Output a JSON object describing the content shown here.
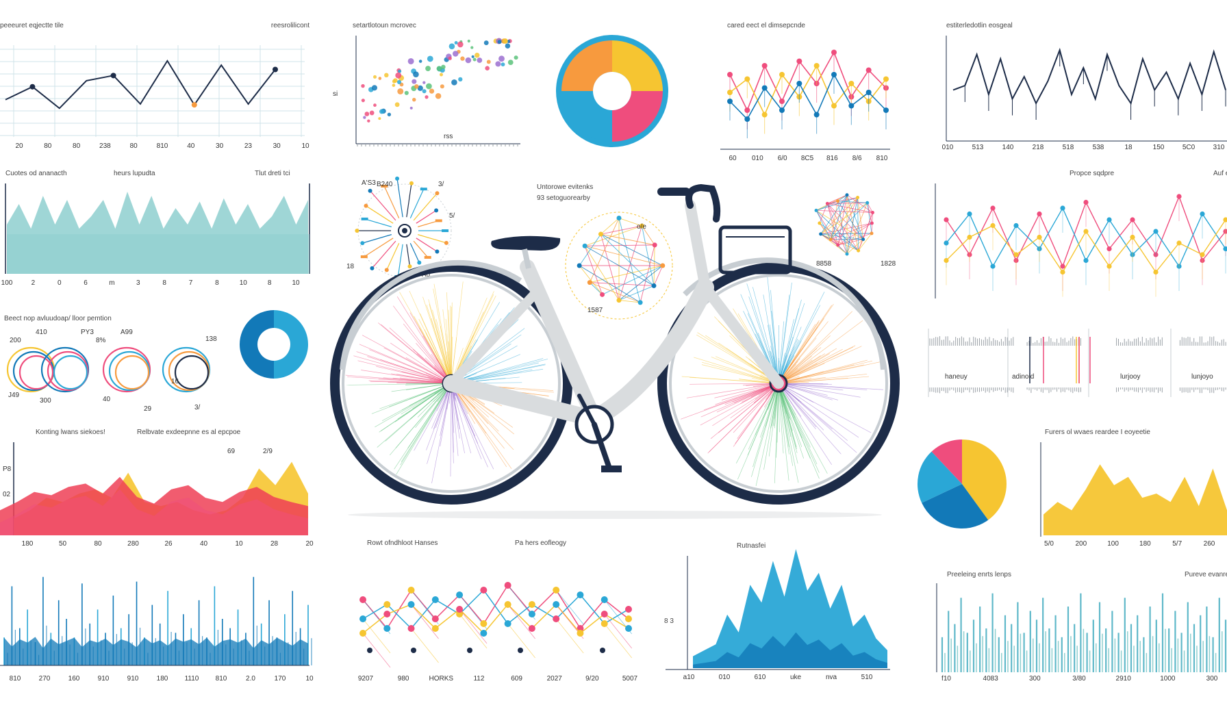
{
  "palette": {
    "navy": "#1d2c48",
    "teal": "#8ecfcf",
    "blue": "#1279b8",
    "cyan": "#2aa7d6",
    "pink": "#ef4d7d",
    "yellow": "#f6c531",
    "orange": "#f79a3e",
    "red": "#ee3f56",
    "gray": "#9aa0a6",
    "frame": "#c7cdd2"
  },
  "bicycle": {
    "frame_color": "#d9dcde",
    "tire_color": "#1d2c48",
    "wheel_colors": [
      "#ef4d7d",
      "#f6c531",
      "#2aa7d6",
      "#f79a3e",
      "#9b6fd0",
      "#5bc27a"
    ]
  },
  "chart_data": [
    {
      "id": "line-top-left",
      "type": "line",
      "title": "peeeuret eqjectte tile",
      "title_right": "reesrolilicont",
      "tick_labels": [
        "20",
        "80",
        "80",
        "238",
        "80",
        "810",
        "40",
        "30",
        "23",
        "30",
        "10"
      ],
      "values": [
        40,
        55,
        30,
        62,
        68,
        35,
        85,
        34,
        80,
        35,
        75
      ],
      "colors": {
        "line": "#1d2c48",
        "grid": "#cfe3e8"
      }
    },
    {
      "id": "area-teal",
      "type": "area",
      "title": "Cuotes od ananacth",
      "title_mid": "heurs lupudta",
      "title_right": "Tlut dreti tci",
      "tick_labels": [
        "100",
        "2",
        "0",
        "6",
        "m",
        "3",
        "8",
        "7",
        "8",
        "10",
        "8",
        "10"
      ],
      "values": [
        60,
        85,
        55,
        95,
        60,
        90,
        55,
        70,
        90,
        55,
        100,
        60,
        95,
        55,
        80,
        60,
        88,
        55,
        92,
        60,
        85,
        55,
        70,
        95,
        60,
        90
      ],
      "colors": {
        "fill": "#8ecfcf"
      }
    },
    {
      "id": "donut-small",
      "type": "pie",
      "title": "",
      "values": [
        50,
        50
      ],
      "colors": [
        "#2aa7d6",
        "#1279b8"
      ]
    },
    {
      "id": "circles",
      "type": "other",
      "title": "Beect nop avluudoap/ lloor pemtion",
      "labels": [
        "200",
        "410",
        "PY3",
        "A99",
        "138",
        "J49",
        "300",
        "40",
        "29",
        "3/",
        "8%",
        "16"
      ]
    },
    {
      "id": "area-warm",
      "type": "area",
      "title": "Konting lwans siekoes!",
      "title_right": "Relbvate exdeepnne es al epcpoe",
      "tick_labels": [
        "180",
        "50",
        "80",
        "280",
        "26",
        "40",
        "10",
        "28",
        "20"
      ],
      "annotations": [
        "P8",
        "02",
        "69",
        "2/9"
      ],
      "series": [
        {
          "name": "",
          "values": [
            30,
            40,
            52,
            48,
            58,
            62,
            50,
            70,
            46,
            38,
            55,
            60,
            45,
            40,
            52,
            58,
            46,
            40,
            35
          ]
        },
        {
          "name": "",
          "values": [
            20,
            30,
            45,
            40,
            50,
            55,
            45,
            75,
            40,
            35,
            40,
            30,
            25,
            30,
            45,
            80,
            60,
            88,
            50
          ]
        }
      ],
      "colors": [
        "#ee3f56",
        "#f6c531"
      ]
    },
    {
      "id": "spikes-blue",
      "type": "bar",
      "title": "",
      "tick_labels": [
        "810",
        "270",
        "160",
        "910",
        "910",
        "180",
        "1110",
        "810",
        "2.0",
        "170",
        "10"
      ],
      "values": [
        30,
        85,
        40,
        60,
        25,
        95,
        35,
        70,
        50,
        30,
        88,
        45,
        60,
        35,
        75,
        40,
        55,
        90,
        30,
        65,
        45,
        80,
        35,
        55,
        40,
        70,
        30,
        85,
        50,
        40,
        60,
        35,
        95,
        45,
        70,
        30,
        55,
        80,
        40,
        65
      ],
      "colors": {
        "fill": "#1279b8",
        "spike": "#2aa7d6"
      }
    },
    {
      "id": "scatter-top",
      "type": "scatter",
      "title": "setartlotoun mcrovec",
      "xlabel": "rss",
      "ylabel": "si",
      "points": 90
    },
    {
      "id": "donut-big",
      "type": "pie",
      "title": "",
      "values": [
        25,
        25,
        25,
        25
      ],
      "colors": [
        "#f6c531",
        "#ef4d7d",
        "#2aa7d6",
        "#f79a3e"
      ]
    },
    {
      "id": "dot-line",
      "type": "line",
      "title": "cared eect el dimsepcnde",
      "tick_labels": [
        "60",
        "010",
        "6/0",
        "8C5",
        "816",
        "8/6",
        "810"
      ],
      "series": [
        {
          "name": "",
          "values": [
            70,
            30,
            80,
            40,
            85,
            60,
            95,
            45,
            75,
            55
          ]
        },
        {
          "name": "",
          "values": [
            50,
            65,
            25,
            70,
            45,
            80,
            35,
            60,
            40,
            65
          ]
        },
        {
          "name": "",
          "values": [
            40,
            20,
            55,
            30,
            60,
            25,
            70,
            35,
            50,
            30
          ]
        }
      ],
      "colors": [
        "#ef4d7d",
        "#f6c531",
        "#1279b8"
      ]
    },
    {
      "id": "line-top-right",
      "type": "line",
      "title": "estiterledotlin eosgeal",
      "tick_labels": [
        "010",
        "513",
        "140",
        "218",
        "518",
        "538",
        "18",
        "150",
        "5C0",
        "310"
      ],
      "values": [
        45,
        50,
        85,
        40,
        80,
        35,
        60,
        30,
        55,
        90,
        40,
        70,
        35,
        85,
        50,
        30,
        80,
        45,
        65,
        35,
        75,
        40,
        88,
        45
      ],
      "colors": {
        "line": "#1d2c48"
      }
    },
    {
      "id": "network-right",
      "type": "line",
      "title": "Propce sqdpre",
      "title_right": "Auf e",
      "series": [
        {
          "name": "",
          "values": [
            70,
            40,
            80,
            35,
            75,
            30,
            85,
            45,
            70,
            40,
            90,
            35,
            60
          ]
        },
        {
          "name": "",
          "values": [
            50,
            75,
            30,
            65,
            45,
            80,
            35,
            70,
            40,
            60,
            30,
            75,
            45
          ]
        },
        {
          "name": "",
          "values": [
            35,
            55,
            65,
            40,
            55,
            25,
            60,
            30,
            55,
            25,
            50,
            40,
            70
          ]
        }
      ],
      "colors": [
        "#ef4d7d",
        "#2aa7d6",
        "#f6c531"
      ]
    },
    {
      "id": "barcode",
      "type": "other",
      "title": "",
      "labels": [
        "haneuy",
        "adinoid",
        "lurjooy",
        "lunjoyo"
      ]
    },
    {
      "id": "pie-right",
      "type": "pie",
      "title": "",
      "values": [
        40,
        28,
        20,
        12
      ],
      "colors": [
        "#f6c531",
        "#1279b8",
        "#2aa7d6",
        "#ef4d7d"
      ]
    },
    {
      "id": "area-yellow",
      "type": "area",
      "title": "Furers ol wvaes reardee I eoyeetie",
      "tick_labels": [
        "5/0",
        "200",
        "100",
        "180",
        "5/7",
        "260"
      ],
      "values": [
        25,
        40,
        30,
        55,
        85,
        60,
        70,
        45,
        50,
        40,
        70,
        35,
        80,
        30
      ],
      "colors": {
        "fill": "#f6c531"
      }
    },
    {
      "id": "radial",
      "type": "other",
      "title": "",
      "labels": [
        "A'S3",
        "B240",
        "3/",
        "5/",
        "A0",
        "18"
      ]
    },
    {
      "id": "radar-mid",
      "type": "other",
      "title": "Untorowe evitenks",
      "subtitle": "93 setoguorearby",
      "labels": [
        "1587",
        "o/e"
      ]
    },
    {
      "id": "web-right",
      "type": "other",
      "title": "",
      "labels": [
        "8858",
        "1828"
      ]
    },
    {
      "id": "network-bottom",
      "type": "line",
      "title": "Rowt ofndhloot Hanses",
      "title_right": "Pa hers eofleogy",
      "tick_labels": [
        "9207",
        "980",
        "HORKS",
        "112",
        "609",
        "2027",
        "9/20",
        "5007"
      ],
      "series": [
        {
          "name": "",
          "values": [
            60,
            30,
            70,
            40,
            65,
            35,
            75,
            45,
            70,
            30,
            60,
            40
          ]
        },
        {
          "name": "",
          "values": [
            40,
            55,
            30,
            60,
            45,
            70,
            35,
            55,
            40,
            65,
            35,
            50
          ]
        },
        {
          "name": "",
          "values": [
            25,
            45,
            55,
            30,
            50,
            25,
            55,
            30,
            55,
            25,
            45,
            30
          ]
        }
      ],
      "colors": [
        "#ef4d7d",
        "#2aa7d6",
        "#f6c531"
      ]
    },
    {
      "id": "area-blue",
      "type": "area",
      "title": "Rutnasfei",
      "ylabel": "8 3",
      "tick_labels": [
        "a10",
        "010",
        "610",
        "uke",
        "nva",
        "510"
      ],
      "values": [
        10,
        15,
        20,
        45,
        30,
        70,
        55,
        90,
        60,
        100,
        65,
        80,
        50,
        70,
        35,
        45,
        25,
        15
      ],
      "colors": {
        "fill": "#2aa7d6"
      }
    },
    {
      "id": "bars-teal",
      "type": "bar",
      "title": "Preeleing enrts lenps",
      "title_right": "Pureve evanre",
      "tick_labels": [
        "f10",
        "4083",
        "300",
        "3/80",
        "2910",
        "1000",
        "300"
      ],
      "values": [
        40,
        70,
        55,
        85,
        45,
        60,
        75,
        50,
        90,
        40,
        65,
        55,
        80,
        45,
        70,
        60,
        85,
        50,
        65,
        40,
        75,
        55,
        90,
        45,
        60,
        80,
        50,
        70,
        45,
        85,
        55,
        65,
        40,
        75,
        60,
        90,
        50,
        70,
        45,
        80,
        55,
        65,
        75,
        40,
        85,
        60
      ],
      "colors": {
        "fill": "#5fb8c9"
      }
    }
  ]
}
